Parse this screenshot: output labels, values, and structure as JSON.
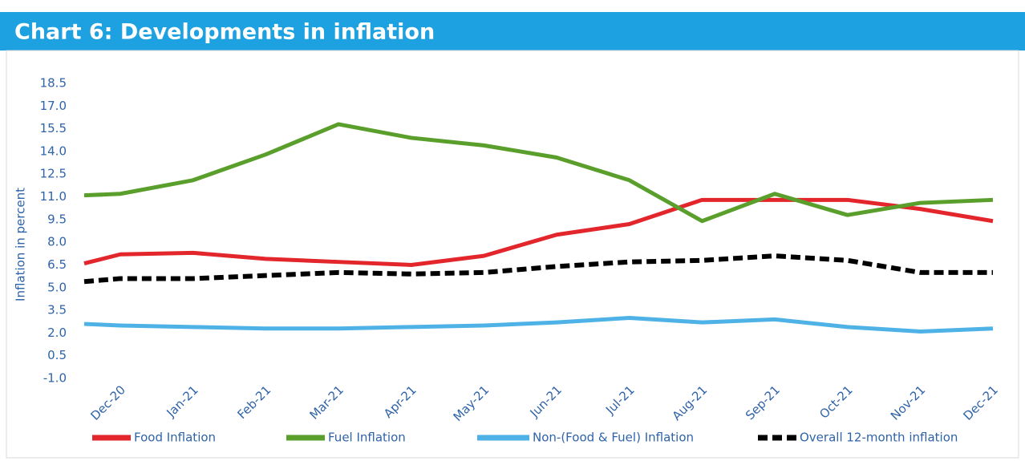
{
  "chart_data": {
    "type": "line",
    "title": "Chart 6: Developments in inflation",
    "y_label": "Inflation in percent",
    "categories": [
      null,
      "Dec-20",
      "Jan-21",
      "Feb-21",
      "Mar-21",
      "Apr-21",
      "May-21",
      "Jun-21",
      "Jul-21",
      "Aug-21",
      "Sep-21",
      "Oct-21",
      "Nov-21",
      "Dec-21"
    ],
    "series": [
      {
        "name": "Food Inflation",
        "color": "#e2262b",
        "dash": false,
        "values": [
          6.6,
          7.2,
          7.3,
          6.9,
          6.7,
          6.5,
          7.1,
          8.5,
          9.2,
          10.8,
          10.8,
          10.8,
          10.2,
          9.4
        ]
      },
      {
        "name": "Fuel Inflation",
        "color": "#5a9f2c",
        "dash": false,
        "values": [
          11.1,
          11.2,
          12.1,
          13.8,
          15.8,
          14.9,
          14.4,
          13.6,
          12.1,
          9.4,
          11.2,
          9.8,
          10.6,
          10.8
        ]
      },
      {
        "name": "Non-(Food & Fuel) Inflation",
        "color": "#4fb2e6",
        "dash": false,
        "values": [
          2.6,
          2.5,
          2.4,
          2.3,
          2.3,
          2.4,
          2.5,
          2.7,
          3.0,
          2.7,
          2.9,
          2.4,
          2.1,
          2.3
        ]
      },
      {
        "name": "Overall 12-month inflation",
        "color": "#000000",
        "dash": true,
        "values": [
          5.4,
          5.6,
          5.6,
          5.8,
          6.0,
          5.9,
          6.0,
          6.4,
          6.7,
          6.8,
          7.1,
          6.8,
          6.0,
          6.0
        ]
      }
    ],
    "ylim": [
      -1.0,
      18.5
    ],
    "yticks": [
      18.5,
      {
        "value": 17,
        "label": "17.0"
      },
      15.5,
      {
        "value": 14,
        "label": "14.0"
      },
      12.5,
      {
        "value": 11,
        "label": "11.0"
      },
      9.5,
      {
        "value": 8,
        "label": "8.0"
      },
      6.5,
      {
        "value": 5,
        "label": "5.0"
      },
      3.5,
      {
        "value": 2,
        "label": "2.0"
      },
      0.5,
      {
        "value": -1,
        "label": "-1.0"
      }
    ],
    "grid": false,
    "legend": "bottom"
  }
}
